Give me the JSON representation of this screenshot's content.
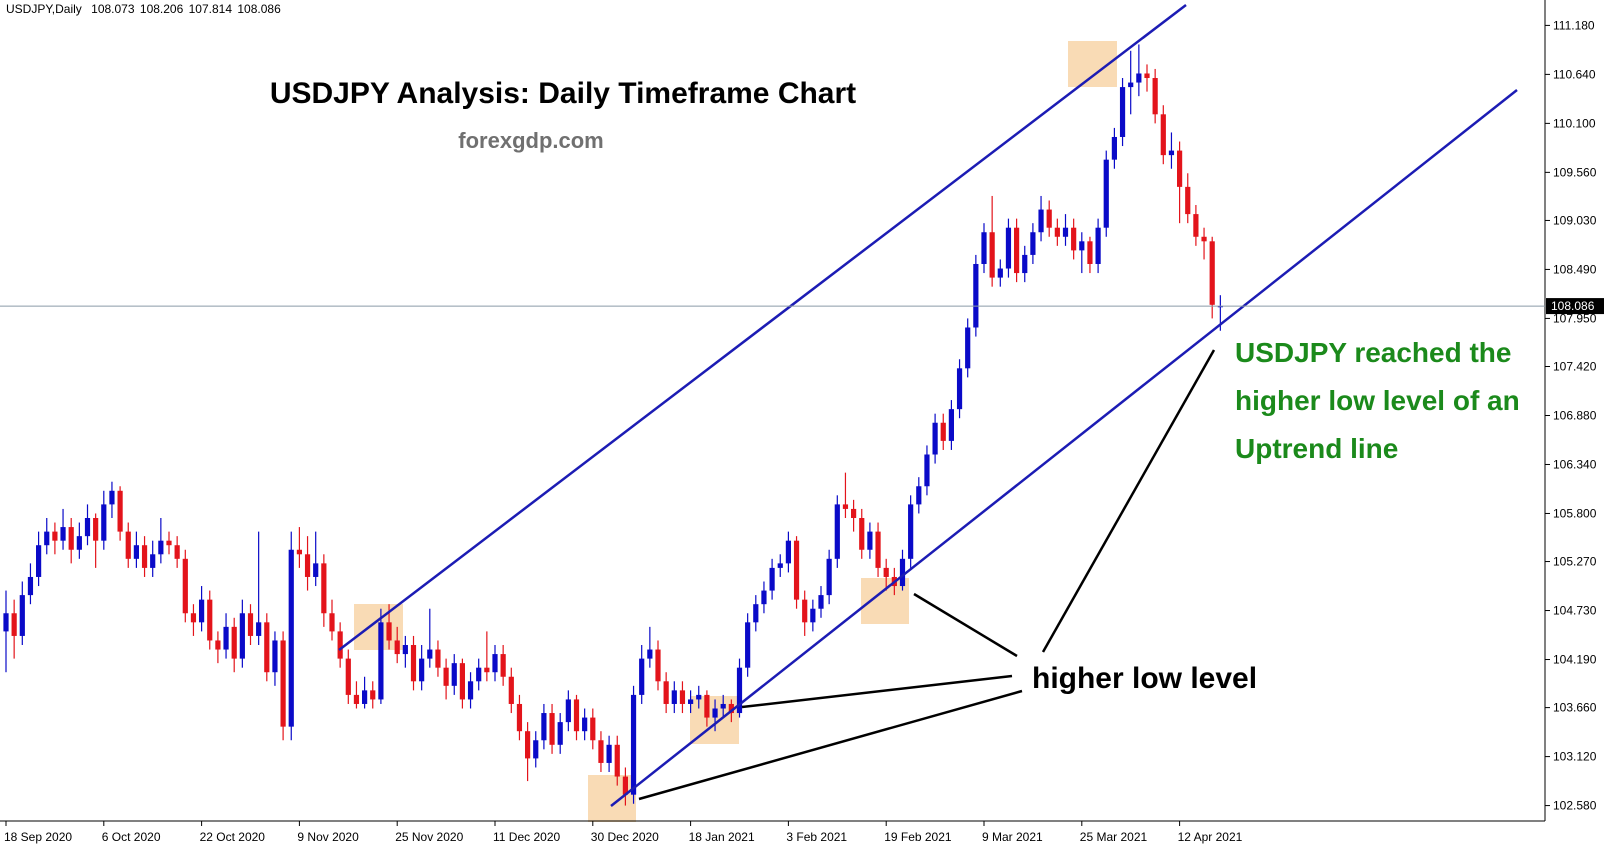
{
  "chart_data": {
    "type": "candlestick",
    "symbol": "USDJPY,Daily",
    "title": "USDJPY Analysis: Daily Timeframe Chart",
    "subtitle": "forexgdp.com",
    "note_lines": [
      "USDJPY reached the",
      "higher low level of an",
      "Uptrend line"
    ],
    "callout": "higher low level",
    "up_color": "#0a0ac8",
    "down_color": "#e3141b",
    "grid": false,
    "ylim": [
      102.41,
      111.46
    ],
    "yticks": [
      {
        "value": 111.18,
        "label": "111.180"
      },
      {
        "value": 110.64,
        "label": "110.640"
      },
      {
        "value": 110.1,
        "label": "110.100"
      },
      {
        "value": 109.56,
        "label": "109.560"
      },
      {
        "value": 109.03,
        "label": "109.030"
      },
      {
        "value": 108.49,
        "label": "108.490"
      },
      {
        "value": 107.95,
        "label": "107.950"
      },
      {
        "value": 107.42,
        "label": "107.420"
      },
      {
        "value": 106.88,
        "label": "106.880"
      },
      {
        "value": 106.34,
        "label": "106.340"
      },
      {
        "value": 105.8,
        "label": "105.800"
      },
      {
        "value": 105.27,
        "label": "105.270"
      },
      {
        "value": 104.73,
        "label": "104.730"
      },
      {
        "value": 104.19,
        "label": "104.190"
      },
      {
        "value": 103.66,
        "label": "103.660"
      },
      {
        "value": 103.12,
        "label": "103.120"
      },
      {
        "value": 102.58,
        "label": "102.580"
      }
    ],
    "categories": [
      "18 Sep 2020",
      null,
      null,
      null,
      null,
      null,
      null,
      null,
      null,
      null,
      null,
      null,
      "6 Oct 2020",
      null,
      null,
      null,
      null,
      null,
      null,
      null,
      null,
      null,
      null,
      null,
      "22 Oct 2020",
      null,
      null,
      null,
      null,
      null,
      null,
      null,
      null,
      null,
      null,
      null,
      "9 Nov 2020",
      null,
      null,
      null,
      null,
      null,
      null,
      null,
      null,
      null,
      null,
      null,
      "25 Nov 2020",
      null,
      null,
      null,
      null,
      null,
      null,
      null,
      null,
      null,
      null,
      null,
      "11 Dec 2020",
      null,
      null,
      null,
      null,
      null,
      null,
      null,
      null,
      null,
      null,
      null,
      "30 Dec 2020",
      null,
      null,
      null,
      null,
      null,
      null,
      null,
      null,
      null,
      null,
      null,
      "18 Jan 2021",
      null,
      null,
      null,
      null,
      null,
      null,
      null,
      null,
      null,
      null,
      null,
      "3 Feb 2021",
      null,
      null,
      null,
      null,
      null,
      null,
      null,
      null,
      null,
      null,
      null,
      "19 Feb 2021",
      null,
      null,
      null,
      null,
      null,
      null,
      null,
      null,
      null,
      null,
      null,
      "9 Mar 2021",
      null,
      null,
      null,
      null,
      null,
      null,
      null,
      null,
      null,
      null,
      null,
      "25 Mar 2021",
      null,
      null,
      null,
      null,
      null,
      null,
      null,
      null,
      null,
      null,
      null,
      "12 Apr 2021",
      null,
      null,
      null,
      null,
      null
    ],
    "candles": [
      [
        104.5,
        104.95,
        104.05,
        104.7
      ],
      [
        104.7,
        104.85,
        104.2,
        104.45
      ],
      [
        104.45,
        105.05,
        104.35,
        104.9
      ],
      [
        104.9,
        105.25,
        104.8,
        105.1
      ],
      [
        105.1,
        105.6,
        105.0,
        105.45
      ],
      [
        105.45,
        105.75,
        105.35,
        105.6
      ],
      [
        105.6,
        105.7,
        105.35,
        105.5
      ],
      [
        105.5,
        105.85,
        105.4,
        105.65
      ],
      [
        105.65,
        105.75,
        105.25,
        105.4
      ],
      [
        105.4,
        105.7,
        105.3,
        105.55
      ],
      [
        105.55,
        105.9,
        105.45,
        105.75
      ],
      [
        105.75,
        105.8,
        105.2,
        105.5
      ],
      [
        105.5,
        106.05,
        105.4,
        105.9
      ],
      [
        105.9,
        106.15,
        105.75,
        106.05
      ],
      [
        106.05,
        106.1,
        105.5,
        105.6
      ],
      [
        105.6,
        105.7,
        105.2,
        105.3
      ],
      [
        105.3,
        105.6,
        105.2,
        105.45
      ],
      [
        105.45,
        105.55,
        105.1,
        105.2
      ],
      [
        105.2,
        105.5,
        105.1,
        105.35
      ],
      [
        105.35,
        105.75,
        105.25,
        105.5
      ],
      [
        105.5,
        105.6,
        105.35,
        105.45
      ],
      [
        105.45,
        105.55,
        105.2,
        105.3
      ],
      [
        105.3,
        105.4,
        104.6,
        104.7
      ],
      [
        104.7,
        104.8,
        104.45,
        104.6
      ],
      [
        104.6,
        105.0,
        104.5,
        104.85
      ],
      [
        104.85,
        104.95,
        104.3,
        104.4
      ],
      [
        104.4,
        104.5,
        104.15,
        104.3
      ],
      [
        104.3,
        104.7,
        104.2,
        104.55
      ],
      [
        104.55,
        104.65,
        104.05,
        104.2
      ],
      [
        104.2,
        104.85,
        104.1,
        104.7
      ],
      [
        104.7,
        104.8,
        104.35,
        104.45
      ],
      [
        104.45,
        105.6,
        104.35,
        104.6
      ],
      [
        104.6,
        104.7,
        103.95,
        104.05
      ],
      [
        104.05,
        104.5,
        103.9,
        104.4
      ],
      [
        104.4,
        104.5,
        103.3,
        103.45
      ],
      [
        103.45,
        105.6,
        103.3,
        105.4
      ],
      [
        105.4,
        105.65,
        105.2,
        105.35
      ],
      [
        105.35,
        105.55,
        104.95,
        105.1
      ],
      [
        105.1,
        105.6,
        105.0,
        105.25
      ],
      [
        105.25,
        105.35,
        104.55,
        104.7
      ],
      [
        104.7,
        104.85,
        104.4,
        104.5
      ],
      [
        104.5,
        104.6,
        104.1,
        104.2
      ],
      [
        104.2,
        104.3,
        103.7,
        103.8
      ],
      [
        103.8,
        103.95,
        103.65,
        103.7
      ],
      [
        103.7,
        104.0,
        103.65,
        103.85
      ],
      [
        103.85,
        103.95,
        103.65,
        103.75
      ],
      [
        103.75,
        104.75,
        103.7,
        104.6
      ],
      [
        104.6,
        104.8,
        104.3,
        104.4
      ],
      [
        104.4,
        104.55,
        104.15,
        104.25
      ],
      [
        104.25,
        104.45,
        104.1,
        104.35
      ],
      [
        104.35,
        104.45,
        103.85,
        103.95
      ],
      [
        103.95,
        104.35,
        103.85,
        104.2
      ],
      [
        104.2,
        104.75,
        104.1,
        104.3
      ],
      [
        104.3,
        104.4,
        104.0,
        104.1
      ],
      [
        104.1,
        104.2,
        103.75,
        103.9
      ],
      [
        103.9,
        104.25,
        103.8,
        104.15
      ],
      [
        104.15,
        104.2,
        103.65,
        103.75
      ],
      [
        103.75,
        104.05,
        103.65,
        103.95
      ],
      [
        103.95,
        104.2,
        103.85,
        104.1
      ],
      [
        104.1,
        104.5,
        103.95,
        104.05
      ],
      [
        104.05,
        104.35,
        103.95,
        104.25
      ],
      [
        104.25,
        104.35,
        103.9,
        104.0
      ],
      [
        104.0,
        104.1,
        103.6,
        103.7
      ],
      [
        103.7,
        103.8,
        103.3,
        103.4
      ],
      [
        103.4,
        103.5,
        102.85,
        103.1
      ],
      [
        103.1,
        103.4,
        103.0,
        103.3
      ],
      [
        103.3,
        103.7,
        103.2,
        103.6
      ],
      [
        103.6,
        103.7,
        103.15,
        103.25
      ],
      [
        103.25,
        103.6,
        103.15,
        103.5
      ],
      [
        103.5,
        103.85,
        103.4,
        103.75
      ],
      [
        103.75,
        103.8,
        103.3,
        103.4
      ],
      [
        103.4,
        103.65,
        103.3,
        103.55
      ],
      [
        103.55,
        103.65,
        103.2,
        103.3
      ],
      [
        103.3,
        103.4,
        102.95,
        103.05
      ],
      [
        103.05,
        103.35,
        102.95,
        103.25
      ],
      [
        103.25,
        103.35,
        102.8,
        102.9
      ],
      [
        102.9,
        103.0,
        102.58,
        102.7
      ],
      [
        102.7,
        103.9,
        102.6,
        103.8
      ],
      [
        103.8,
        104.35,
        103.7,
        104.2
      ],
      [
        104.2,
        104.55,
        104.1,
        104.3
      ],
      [
        104.3,
        104.4,
        103.85,
        103.95
      ],
      [
        103.95,
        104.05,
        103.6,
        103.7
      ],
      [
        103.7,
        103.95,
        103.6,
        103.85
      ],
      [
        103.85,
        103.95,
        103.6,
        103.7
      ],
      [
        103.7,
        103.85,
        103.6,
        103.75
      ],
      [
        103.75,
        103.9,
        103.65,
        103.8
      ],
      [
        103.8,
        103.85,
        103.45,
        103.55
      ],
      [
        103.55,
        103.75,
        103.4,
        103.65
      ],
      [
        103.65,
        103.8,
        103.55,
        103.7
      ],
      [
        103.7,
        103.75,
        103.5,
        103.6
      ],
      [
        103.6,
        104.2,
        103.55,
        104.1
      ],
      [
        104.1,
        104.7,
        104.0,
        104.6
      ],
      [
        104.6,
        104.9,
        104.5,
        104.8
      ],
      [
        104.8,
        105.05,
        104.7,
        104.95
      ],
      [
        104.95,
        105.3,
        104.85,
        105.2
      ],
      [
        105.2,
        105.35,
        105.1,
        105.25
      ],
      [
        105.25,
        105.6,
        105.15,
        105.5
      ],
      [
        105.5,
        105.55,
        104.75,
        104.85
      ],
      [
        104.85,
        104.95,
        104.45,
        104.6
      ],
      [
        104.6,
        104.85,
        104.5,
        104.75
      ],
      [
        104.75,
        105.0,
        104.65,
        104.9
      ],
      [
        104.9,
        105.4,
        104.8,
        105.3
      ],
      [
        105.3,
        106.0,
        105.2,
        105.9
      ],
      [
        105.9,
        106.25,
        105.75,
        105.85
      ],
      [
        105.85,
        105.95,
        105.6,
        105.75
      ],
      [
        105.75,
        105.85,
        105.3,
        105.4
      ],
      [
        105.4,
        105.7,
        105.3,
        105.6
      ],
      [
        105.6,
        105.7,
        105.1,
        105.2
      ],
      [
        105.2,
        105.3,
        104.95,
        105.1
      ],
      [
        105.1,
        105.2,
        104.9,
        105.0
      ],
      [
        105.0,
        105.4,
        104.95,
        105.3
      ],
      [
        105.3,
        106.0,
        105.2,
        105.9
      ],
      [
        105.9,
        106.2,
        105.8,
        106.1
      ],
      [
        106.1,
        106.55,
        106.0,
        106.45
      ],
      [
        106.45,
        106.9,
        106.35,
        106.8
      ],
      [
        106.8,
        106.9,
        106.5,
        106.6
      ],
      [
        106.6,
        107.05,
        106.5,
        106.95
      ],
      [
        106.95,
        107.5,
        106.85,
        107.4
      ],
      [
        107.4,
        107.95,
        107.3,
        107.85
      ],
      [
        107.85,
        108.65,
        107.75,
        108.55
      ],
      [
        108.55,
        109.0,
        108.45,
        108.9
      ],
      [
        108.9,
        109.3,
        108.3,
        108.4
      ],
      [
        108.4,
        108.6,
        108.3,
        108.5
      ],
      [
        108.5,
        109.05,
        108.4,
        108.95
      ],
      [
        108.95,
        109.05,
        108.35,
        108.45
      ],
      [
        108.45,
        108.75,
        108.35,
        108.65
      ],
      [
        108.65,
        109.0,
        108.55,
        108.9
      ],
      [
        108.9,
        109.3,
        108.8,
        109.15
      ],
      [
        109.15,
        109.25,
        108.85,
        108.95
      ],
      [
        108.95,
        109.05,
        108.75,
        108.85
      ],
      [
        108.85,
        109.1,
        108.75,
        108.95
      ],
      [
        108.95,
        109.05,
        108.6,
        108.7
      ],
      [
        108.7,
        108.9,
        108.45,
        108.8
      ],
      [
        108.8,
        108.85,
        108.45,
        108.55
      ],
      [
        108.55,
        109.05,
        108.45,
        108.95
      ],
      [
        108.95,
        109.8,
        108.85,
        109.7
      ],
      [
        109.7,
        110.05,
        109.6,
        109.95
      ],
      [
        109.95,
        110.6,
        109.85,
        110.5
      ],
      [
        110.5,
        110.9,
        110.2,
        110.55
      ],
      [
        110.55,
        110.97,
        110.4,
        110.65
      ],
      [
        110.65,
        110.75,
        110.45,
        110.6
      ],
      [
        110.6,
        110.7,
        110.1,
        110.2
      ],
      [
        110.2,
        110.3,
        109.65,
        109.75
      ],
      [
        109.75,
        110.0,
        109.6,
        109.8
      ],
      [
        109.8,
        109.9,
        109.0,
        109.4
      ],
      [
        109.4,
        109.55,
        109.0,
        109.1
      ],
      [
        109.1,
        109.2,
        108.75,
        108.85
      ],
      [
        108.85,
        108.95,
        108.6,
        108.8
      ],
      [
        108.8,
        108.85,
        107.95,
        108.1
      ],
      [
        108.073,
        108.206,
        107.814,
        108.086
      ]
    ]
  }
}
